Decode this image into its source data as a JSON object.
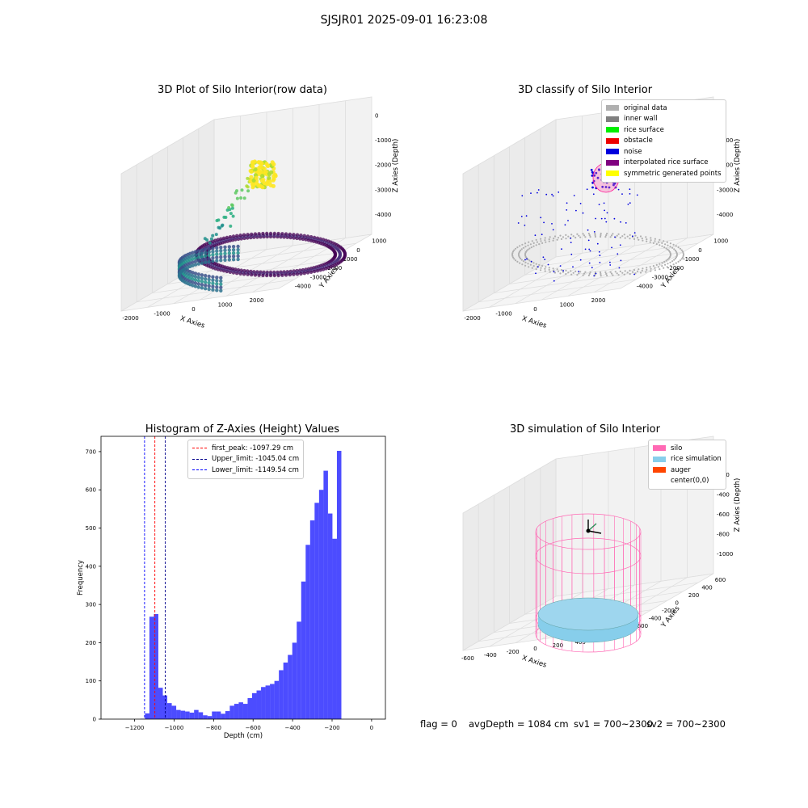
{
  "figure_title": "SJSJR01 2025-09-01 16:23:08",
  "status": {
    "flag": "flag = 0",
    "avg_depth": "avgDepth = 1084 cm",
    "sv1": "sv1 = 700~2300",
    "sv2": "sv2 = 700~2300"
  },
  "chart_data": [
    {
      "type": "scatter",
      "title": "3D Plot of Silo Interior(row data)",
      "xlabel": "X Axies",
      "ylabel": "Y Axies",
      "zlabel": "Z Axies (Depth)",
      "x_ticks": [
        "-2000",
        "-1000",
        "0",
        "1000",
        "2000"
      ],
      "y_ticks": [
        "1000",
        "0",
        "-1000",
        "-2000",
        "-3000",
        "-4000"
      ],
      "z_ticks": [
        "0",
        "-1000",
        "-2000",
        "-3000",
        "-4000"
      ],
      "colormap": "viridis"
    },
    {
      "type": "scatter",
      "title": "3D classify of Silo Interior",
      "xlabel": "X Axies",
      "ylabel": "Y Axies",
      "zlabel": "Z Axies (Depth)",
      "x_ticks": [
        "-2000",
        "-1000",
        "0",
        "1000",
        "2000"
      ],
      "y_ticks": [
        "1000",
        "0",
        "-1000",
        "-2000",
        "-3000",
        "-4000"
      ],
      "z_ticks": [
        "0",
        "-1000",
        "-2000",
        "-3000",
        "-4000"
      ],
      "legend": [
        {
          "label": "original data",
          "color": "#b0b0b0"
        },
        {
          "label": "inner wall",
          "color": "#808080"
        },
        {
          "label": "rice surface",
          "color": "#00ee00"
        },
        {
          "label": "obstacle",
          "color": "#ee0000"
        },
        {
          "label": "noise",
          "color": "#0000dd"
        },
        {
          "label": "interpolated rice surface",
          "color": "#800080"
        },
        {
          "label": "symmetric generated points",
          "color": "#ffff00"
        }
      ]
    },
    {
      "type": "bar",
      "title": "Histogram of Z-Axies (Height) Values",
      "xlabel": "Depth (cm)",
      "ylabel": "Frequency",
      "xlim": [
        -1370,
        70
      ],
      "ylim": [
        0,
        740
      ],
      "x_ticks": [
        -1200,
        -1000,
        -800,
        -600,
        -400,
        -200,
        0
      ],
      "y_ticks": [
        0,
        100,
        200,
        300,
        400,
        500,
        600,
        700
      ],
      "bar_color": "#0000ff",
      "bin_width": 22.6,
      "bin_start": -1170,
      "values": [
        1,
        15,
        268,
        275,
        82,
        62,
        42,
        35,
        24,
        22,
        20,
        17,
        24,
        18,
        10,
        8,
        20,
        20,
        14,
        21,
        35,
        40,
        44,
        40,
        55,
        68,
        75,
        84,
        88,
        92,
        100,
        128,
        148,
        168,
        200,
        255,
        360,
        456,
        520,
        566,
        600,
        650,
        538,
        472,
        702
      ],
      "vlines": [
        {
          "label": "first_peak: -1097.29 cm",
          "x": -1097.29,
          "color": "#ff0000"
        },
        {
          "label": "Upper_limit: -1045.04 cm",
          "x": -1045.04,
          "color": "#00008b"
        },
        {
          "label": "Lower_limit: -1149.54 cm",
          "x": -1149.54,
          "color": "#0000ff"
        }
      ]
    },
    {
      "type": "scatter",
      "title": "3D simulation of Silo Interior",
      "xlabel": "X Axies",
      "ylabel": "Y Axies",
      "zlabel": "Z Axies (Depth)",
      "x_ticks": [
        "-600",
        "-400",
        "-200",
        "0",
        "200",
        "400",
        "600"
      ],
      "y_ticks": [
        "600",
        "400",
        "200",
        "0",
        "-200",
        "-400",
        "-600"
      ],
      "z_ticks": [
        "0",
        "-200",
        "-400",
        "-600",
        "-800",
        "-1000"
      ],
      "legend": [
        {
          "label": "silo",
          "color": "#ff69b4"
        },
        {
          "label": "rice simulation",
          "color": "#87ceeb"
        },
        {
          "label": "auger",
          "color": "#ff4500"
        },
        {
          "label": "center(0,0)",
          "color": "#ffffff"
        }
      ]
    }
  ]
}
